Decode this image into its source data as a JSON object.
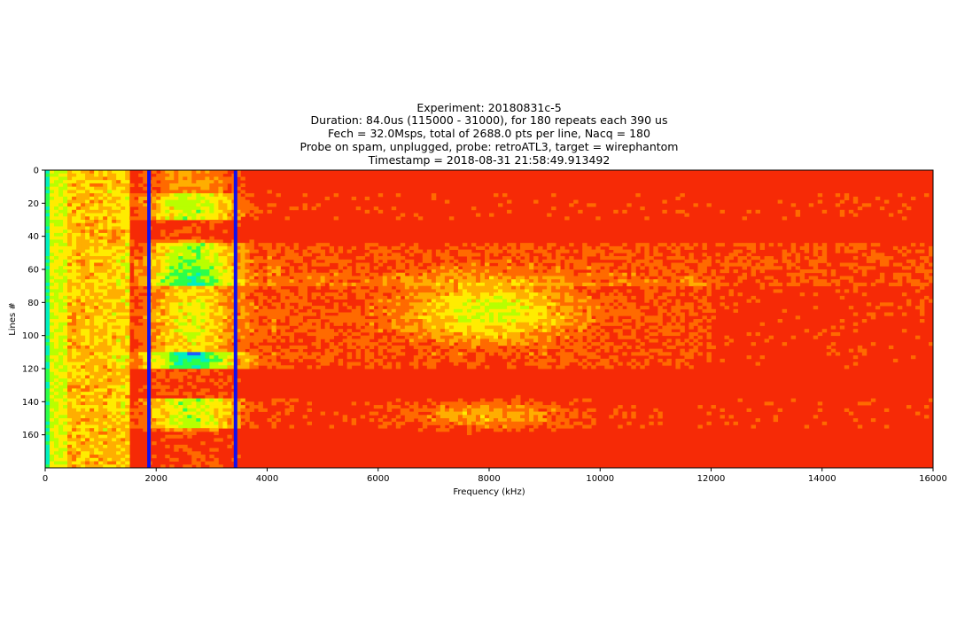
{
  "chart_data": {
    "type": "heatmap",
    "title_lines": [
      "Experiment: 20180831c-5",
      "Duration: 84.0us (115000 - 31000), for 180 repeats each 390 us",
      "Fech = 32.0Msps, total of 2688.0 pts per line, Nacq = 180",
      "Probe on spam, unplugged, probe: retroATL3, target = wirephantom",
      "Timestamp = 2018-08-31 21:58:49.913492"
    ],
    "xlabel": "Frequency (kHz)",
    "ylabel": "Lines #",
    "xlim": [
      0,
      16000
    ],
    "ylim": [
      180,
      0
    ],
    "x_ticks": [
      "0",
      "2000",
      "4000",
      "6000",
      "8000",
      "10000",
      "12000",
      "14000",
      "16000"
    ],
    "y_ticks": [
      "0",
      "20",
      "40",
      "60",
      "80",
      "100",
      "120",
      "140",
      "160"
    ],
    "colormap": "prism-like (red / orange / yellow / green / blue)",
    "vertical_markers_khz": [
      1870,
      3430
    ],
    "marker_color": "#1010ee",
    "background_color": "#f62a06"
  }
}
